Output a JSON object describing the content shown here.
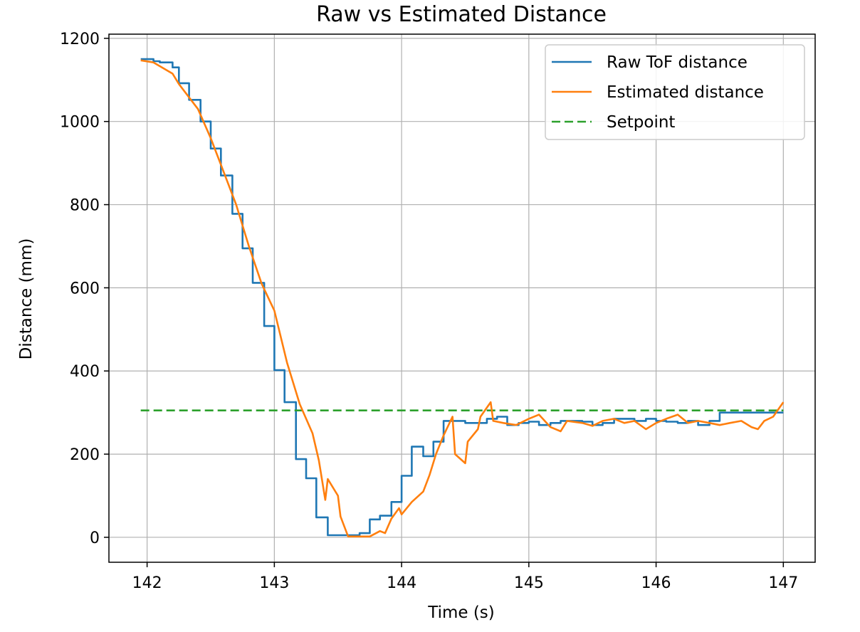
{
  "chart_data": {
    "type": "line",
    "title": "Raw vs Estimated Distance",
    "xlabel": "Time (s)",
    "ylabel": "Distance (mm)",
    "xlim": [
      141.7,
      147.25
    ],
    "ylim": [
      -60,
      1210
    ],
    "xticks": [
      142,
      143,
      144,
      145,
      146,
      147
    ],
    "yticks": [
      0,
      200,
      400,
      600,
      800,
      1000,
      1200
    ],
    "grid": true,
    "legend_position": "upper right",
    "series": [
      {
        "name": "Raw ToF distance",
        "color": "#1f77b4",
        "style": "step",
        "x": [
          141.95,
          142.05,
          142.1,
          142.2,
          142.25,
          142.33,
          142.42,
          142.5,
          142.58,
          142.67,
          142.75,
          142.83,
          142.92,
          143.0,
          143.08,
          143.17,
          143.25,
          143.33,
          143.42,
          143.5,
          143.58,
          143.67,
          143.75,
          143.83,
          143.92,
          144.0,
          144.08,
          144.17,
          144.25,
          144.33,
          144.42,
          144.5,
          144.58,
          144.67,
          144.75,
          144.83,
          144.92,
          145.0,
          145.08,
          145.17,
          145.25,
          145.33,
          145.42,
          145.5,
          145.58,
          145.67,
          145.75,
          145.83,
          145.92,
          146.0,
          146.08,
          146.17,
          146.25,
          146.33,
          146.42,
          146.5,
          146.58,
          146.67,
          146.75,
          146.83,
          146.92,
          147.0
        ],
        "y": [
          1150,
          1145,
          1142,
          1130,
          1092,
          1052,
          1000,
          935,
          870,
          778,
          695,
          612,
          508,
          402,
          325,
          188,
          142,
          48,
          5,
          5,
          5,
          10,
          43,
          52,
          85,
          148,
          218,
          195,
          230,
          280,
          280,
          275,
          275,
          285,
          290,
          270,
          275,
          278,
          270,
          275,
          280,
          280,
          278,
          270,
          275,
          285,
          285,
          280,
          285,
          280,
          278,
          275,
          280,
          270,
          280,
          300,
          300,
          300,
          300,
          300,
          300,
          300
        ]
      },
      {
        "name": "Estimated distance",
        "color": "#ff7f0e",
        "style": "line",
        "x": [
          141.95,
          142.05,
          142.2,
          142.25,
          142.4,
          142.5,
          142.6,
          142.7,
          142.8,
          142.9,
          143.0,
          143.1,
          143.2,
          143.3,
          143.35,
          143.4,
          143.42,
          143.5,
          143.52,
          143.58,
          143.67,
          143.75,
          143.83,
          143.87,
          143.92,
          143.98,
          144.0,
          144.08,
          144.17,
          144.22,
          144.27,
          144.33,
          144.4,
          144.42,
          144.5,
          144.52,
          144.6,
          144.62,
          144.7,
          144.72,
          144.8,
          144.9,
          145.0,
          145.08,
          145.17,
          145.25,
          145.3,
          145.42,
          145.5,
          145.58,
          145.67,
          145.75,
          145.83,
          145.92,
          146.0,
          146.08,
          146.17,
          146.25,
          146.33,
          146.42,
          146.5,
          146.58,
          146.67,
          146.75,
          146.8,
          146.85,
          146.92,
          147.0
        ],
        "y": [
          1147,
          1142,
          1115,
          1090,
          1030,
          960,
          880,
          800,
          700,
          610,
          545,
          420,
          320,
          250,
          185,
          90,
          140,
          100,
          50,
          2,
          2,
          2,
          15,
          10,
          45,
          70,
          55,
          85,
          110,
          150,
          200,
          245,
          290,
          200,
          178,
          230,
          260,
          290,
          325,
          280,
          275,
          270,
          285,
          295,
          265,
          255,
          280,
          275,
          268,
          280,
          285,
          275,
          280,
          260,
          275,
          285,
          295,
          275,
          280,
          275,
          270,
          275,
          280,
          265,
          260,
          280,
          290,
          325
        ]
      },
      {
        "name": "Setpoint",
        "color": "#2ca02c",
        "style": "dashed",
        "x": [
          141.95,
          147.0
        ],
        "y": [
          305,
          305
        ]
      }
    ]
  }
}
